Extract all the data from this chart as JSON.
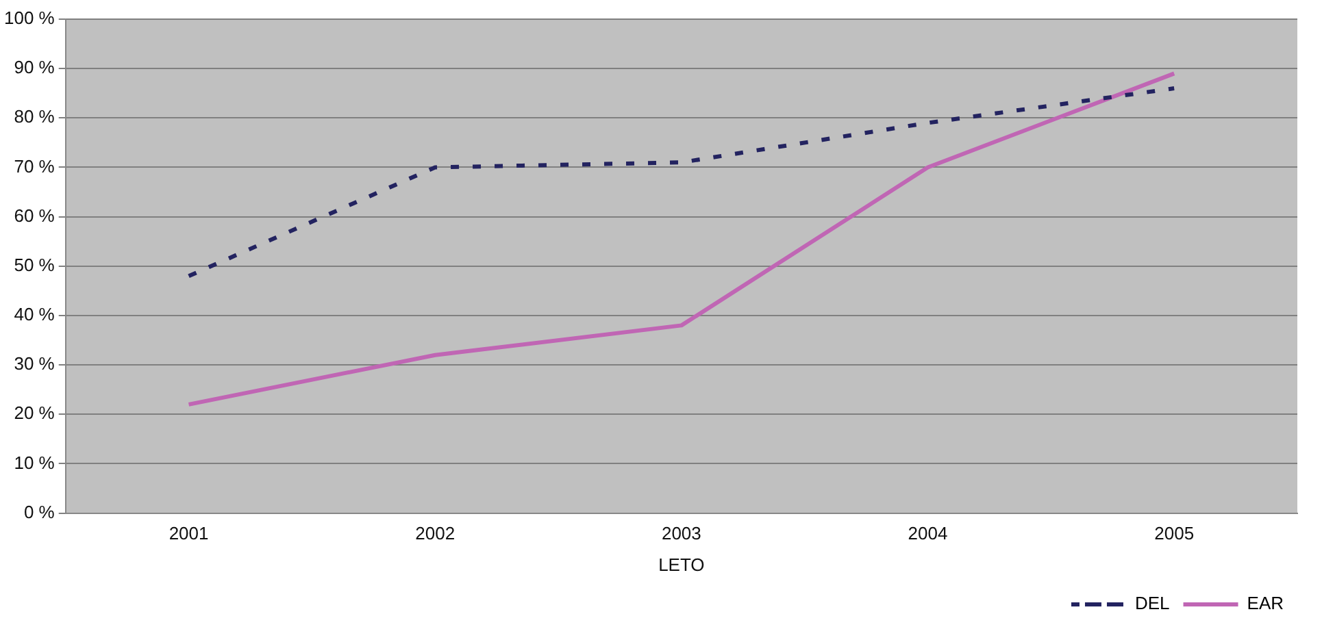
{
  "chart_data": {
    "type": "line",
    "xlabel": "LETO",
    "categories": [
      "2001",
      "2002",
      "2003",
      "2004",
      "2005"
    ],
    "series": [
      {
        "name": "DEL",
        "color": "#232360",
        "values": [
          48,
          70,
          71,
          79,
          86
        ],
        "line_style": "dashed"
      },
      {
        "name": "EAR",
        "color": "#c066b4",
        "values": [
          22,
          32,
          38,
          70,
          89
        ],
        "line_style": "solid"
      }
    ],
    "ylim": [
      0,
      100
    ],
    "yticks": [
      {
        "value": 0,
        "label": "0 %"
      },
      {
        "value": 10,
        "label": "10 %"
      },
      {
        "value": 20,
        "label": "20 %"
      },
      {
        "value": 30,
        "label": "30 %"
      },
      {
        "value": 40,
        "label": "40 %"
      },
      {
        "value": 50,
        "label": "50 %"
      },
      {
        "value": 60,
        "label": "60 %"
      },
      {
        "value": 70,
        "label": "70 %"
      },
      {
        "value": 80,
        "label": "80 %"
      },
      {
        "value": 90,
        "label": "90 %"
      },
      {
        "value": 100,
        "label": "100 %"
      }
    ],
    "grid": "y",
    "legend": "bottom right",
    "marker": "none"
  }
}
